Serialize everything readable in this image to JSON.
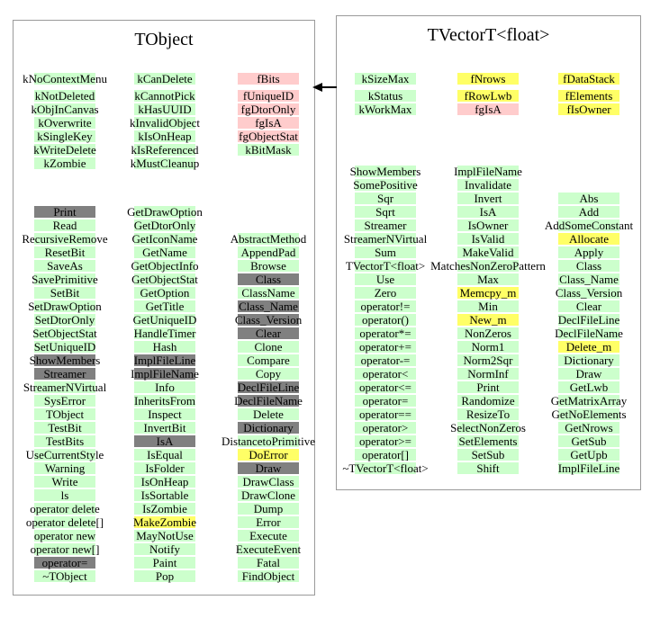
{
  "colors": {
    "green": "#ccffcc",
    "pink": "#ffcccc",
    "yellow": "#ffff66",
    "gray": "#808080"
  },
  "arrow": {
    "points_to": "TObject",
    "from": "TVectorT<float>"
  },
  "classes": [
    {
      "id": "tobject",
      "title": "TObject",
      "members": [
        [
          {
            "t": "kNoContextMenu",
            "c": "green"
          },
          {
            "t": "kNotDeleted",
            "c": "green"
          },
          {
            "t": "kObjInCanvas",
            "c": "green"
          },
          {
            "t": "kOverwrite",
            "c": "green"
          },
          {
            "t": "kSingleKey",
            "c": "green"
          },
          {
            "t": "kWriteDelete",
            "c": "green"
          },
          {
            "t": "kZombie",
            "c": "green"
          }
        ],
        [
          {
            "t": "kCanDelete",
            "c": "green"
          },
          {
            "t": "kCannotPick",
            "c": "green"
          },
          {
            "t": "kHasUUID",
            "c": "green"
          },
          {
            "t": "kInvalidObject",
            "c": "green"
          },
          {
            "t": "kIsOnHeap",
            "c": "green"
          },
          {
            "t": "kIsReferenced",
            "c": "green"
          },
          {
            "t": "kMustCleanup",
            "c": "green"
          }
        ],
        [
          {
            "t": "fBits",
            "c": "pink"
          },
          {
            "t": "fUniqueID",
            "c": "pink"
          },
          {
            "t": "fgDtorOnly",
            "c": "pink"
          },
          {
            "t": "fgIsA",
            "c": "pink"
          },
          {
            "t": "fgObjectStat",
            "c": "pink"
          },
          {
            "t": "kBitMask",
            "c": "green"
          }
        ]
      ],
      "methods": [
        [
          {
            "t": "Print",
            "c": "gray"
          },
          {
            "t": "Read",
            "c": "green"
          },
          {
            "t": "RecursiveRemove",
            "c": "green"
          },
          {
            "t": "ResetBit",
            "c": "green"
          },
          {
            "t": "SaveAs",
            "c": "green"
          },
          {
            "t": "SavePrimitive",
            "c": "green"
          },
          {
            "t": "SetBit",
            "c": "green"
          },
          {
            "t": "SetDrawOption",
            "c": "green"
          },
          {
            "t": "SetDtorOnly",
            "c": "green"
          },
          {
            "t": "SetObjectStat",
            "c": "green"
          },
          {
            "t": "SetUniqueID",
            "c": "green"
          },
          {
            "t": "ShowMembers",
            "c": "gray"
          },
          {
            "t": "Streamer",
            "c": "gray"
          },
          {
            "t": "StreamerNVirtual",
            "c": "green"
          },
          {
            "t": "SysError",
            "c": "green"
          },
          {
            "t": "TObject",
            "c": "green"
          },
          {
            "t": "TestBit",
            "c": "green"
          },
          {
            "t": "TestBits",
            "c": "green"
          },
          {
            "t": "UseCurrentStyle",
            "c": "green"
          },
          {
            "t": "Warning",
            "c": "green"
          },
          {
            "t": "Write",
            "c": "green"
          },
          {
            "t": "ls",
            "c": "green"
          },
          {
            "t": "operator delete",
            "c": "green"
          },
          {
            "t": "operator delete[]",
            "c": "green"
          },
          {
            "t": "operator new",
            "c": "green"
          },
          {
            "t": "operator new[]",
            "c": "green"
          },
          {
            "t": "operator=",
            "c": "gray"
          },
          {
            "t": "~TObject",
            "c": "green"
          }
        ],
        [
          {
            "t": "GetDrawOption",
            "c": "green"
          },
          {
            "t": "GetDtorOnly",
            "c": "green"
          },
          {
            "t": "GetIconName",
            "c": "green"
          },
          {
            "t": "GetName",
            "c": "green"
          },
          {
            "t": "GetObjectInfo",
            "c": "green"
          },
          {
            "t": "GetObjectStat",
            "c": "green"
          },
          {
            "t": "GetOption",
            "c": "green"
          },
          {
            "t": "GetTitle",
            "c": "green"
          },
          {
            "t": "GetUniqueID",
            "c": "green"
          },
          {
            "t": "HandleTimer",
            "c": "green"
          },
          {
            "t": "Hash",
            "c": "green"
          },
          {
            "t": "ImplFileLine",
            "c": "gray"
          },
          {
            "t": "ImplFileName",
            "c": "gray"
          },
          {
            "t": "Info",
            "c": "green"
          },
          {
            "t": "InheritsFrom",
            "c": "green"
          },
          {
            "t": "Inspect",
            "c": "green"
          },
          {
            "t": "InvertBit",
            "c": "green"
          },
          {
            "t": "IsA",
            "c": "gray"
          },
          {
            "t": "IsEqual",
            "c": "green"
          },
          {
            "t": "IsFolder",
            "c": "green"
          },
          {
            "t": "IsOnHeap",
            "c": "green"
          },
          {
            "t": "IsSortable",
            "c": "green"
          },
          {
            "t": "IsZombie",
            "c": "green"
          },
          {
            "t": "MakeZombie",
            "c": "yellow"
          },
          {
            "t": "MayNotUse",
            "c": "green"
          },
          {
            "t": "Notify",
            "c": "green"
          },
          {
            "t": "Paint",
            "c": "green"
          },
          {
            "t": "Pop",
            "c": "green"
          }
        ],
        [
          {
            "t": "AbstractMethod",
            "c": "green"
          },
          {
            "t": "AppendPad",
            "c": "green"
          },
          {
            "t": "Browse",
            "c": "green"
          },
          {
            "t": "Class",
            "c": "gray"
          },
          {
            "t": "ClassName",
            "c": "green"
          },
          {
            "t": "Class_Name",
            "c": "gray"
          },
          {
            "t": "Class_Version",
            "c": "gray"
          },
          {
            "t": "Clear",
            "c": "gray"
          },
          {
            "t": "Clone",
            "c": "green"
          },
          {
            "t": "Compare",
            "c": "green"
          },
          {
            "t": "Copy",
            "c": "green"
          },
          {
            "t": "DeclFileLine",
            "c": "gray"
          },
          {
            "t": "DeclFileName",
            "c": "gray"
          },
          {
            "t": "Delete",
            "c": "green"
          },
          {
            "t": "Dictionary",
            "c": "gray"
          },
          {
            "t": "DistancetoPrimitive",
            "c": "green"
          },
          {
            "t": "DoError",
            "c": "yellow"
          },
          {
            "t": "Draw",
            "c": "gray"
          },
          {
            "t": "DrawClass",
            "c": "green"
          },
          {
            "t": "DrawClone",
            "c": "green"
          },
          {
            "t": "Dump",
            "c": "green"
          },
          {
            "t": "Error",
            "c": "green"
          },
          {
            "t": "Execute",
            "c": "green"
          },
          {
            "t": "ExecuteEvent",
            "c": "green"
          },
          {
            "t": "Fatal",
            "c": "green"
          },
          {
            "t": "FindObject",
            "c": "green"
          }
        ]
      ]
    },
    {
      "id": "tvectort-float",
      "title": "TVectorT<float>",
      "members": [
        [
          {
            "t": "kSizeMax",
            "c": "green"
          },
          {
            "t": "kStatus",
            "c": "green"
          },
          {
            "t": "kWorkMax",
            "c": "green"
          }
        ],
        [
          {
            "t": "fNrows",
            "c": "yellow"
          },
          {
            "t": "fRowLwb",
            "c": "yellow"
          },
          {
            "t": "fgIsA",
            "c": "pink"
          }
        ],
        [
          {
            "t": "fDataStack",
            "c": "yellow"
          },
          {
            "t": "fElements",
            "c": "yellow"
          },
          {
            "t": "fIsOwner",
            "c": "yellow"
          }
        ]
      ],
      "methods": [
        [
          {
            "t": "ShowMembers",
            "c": "green"
          },
          {
            "t": "SomePositive",
            "c": "green"
          },
          {
            "t": "Sqr",
            "c": "green"
          },
          {
            "t": "Sqrt",
            "c": "green"
          },
          {
            "t": "Streamer",
            "c": "green"
          },
          {
            "t": "StreamerNVirtual",
            "c": "green"
          },
          {
            "t": "Sum",
            "c": "green"
          },
          {
            "t": "TVectorT<float>",
            "c": "green"
          },
          {
            "t": "Use",
            "c": "green"
          },
          {
            "t": "Zero",
            "c": "green"
          },
          {
            "t": "operator!=",
            "c": "green"
          },
          {
            "t": "operator()",
            "c": "green"
          },
          {
            "t": "operator*=",
            "c": "green"
          },
          {
            "t": "operator+=",
            "c": "green"
          },
          {
            "t": "operator-=",
            "c": "green"
          },
          {
            "t": "operator<",
            "c": "green"
          },
          {
            "t": "operator<=",
            "c": "green"
          },
          {
            "t": "operator=",
            "c": "green"
          },
          {
            "t": "operator==",
            "c": "green"
          },
          {
            "t": "operator>",
            "c": "green"
          },
          {
            "t": "operator>=",
            "c": "green"
          },
          {
            "t": "operator[]",
            "c": "green"
          },
          {
            "t": "~TVectorT<float>",
            "c": "green"
          }
        ],
        [
          {
            "t": "ImplFileName",
            "c": "green"
          },
          {
            "t": "Invalidate",
            "c": "green"
          },
          {
            "t": "Invert",
            "c": "green"
          },
          {
            "t": "IsA",
            "c": "green"
          },
          {
            "t": "IsOwner",
            "c": "green"
          },
          {
            "t": "IsValid",
            "c": "green"
          },
          {
            "t": "MakeValid",
            "c": "green"
          },
          {
            "t": "MatchesNonZeroPattern",
            "c": "green"
          },
          {
            "t": "Max",
            "c": "green"
          },
          {
            "t": "Memcpy_m",
            "c": "yellow"
          },
          {
            "t": "Min",
            "c": "green"
          },
          {
            "t": "New_m",
            "c": "yellow"
          },
          {
            "t": "NonZeros",
            "c": "green"
          },
          {
            "t": "Norm1",
            "c": "green"
          },
          {
            "t": "Norm2Sqr",
            "c": "green"
          },
          {
            "t": "NormInf",
            "c": "green"
          },
          {
            "t": "Print",
            "c": "green"
          },
          {
            "t": "Randomize",
            "c": "green"
          },
          {
            "t": "ResizeTo",
            "c": "green"
          },
          {
            "t": "SelectNonZeros",
            "c": "green"
          },
          {
            "t": "SetElements",
            "c": "green"
          },
          {
            "t": "SetSub",
            "c": "green"
          },
          {
            "t": "Shift",
            "c": "green"
          }
        ],
        [
          {
            "t": "Abs",
            "c": "green"
          },
          {
            "t": "Add",
            "c": "green"
          },
          {
            "t": "AddSomeConstant",
            "c": "green"
          },
          {
            "t": "Allocate",
            "c": "yellow"
          },
          {
            "t": "Apply",
            "c": "green"
          },
          {
            "t": "Class",
            "c": "green"
          },
          {
            "t": "Class_Name",
            "c": "green"
          },
          {
            "t": "Class_Version",
            "c": "green"
          },
          {
            "t": "Clear",
            "c": "green"
          },
          {
            "t": "DeclFileLine",
            "c": "green"
          },
          {
            "t": "DeclFileName",
            "c": "green"
          },
          {
            "t": "Delete_m",
            "c": "yellow"
          },
          {
            "t": "Dictionary",
            "c": "green"
          },
          {
            "t": "Draw",
            "c": "green"
          },
          {
            "t": "GetLwb",
            "c": "green"
          },
          {
            "t": "GetMatrixArray",
            "c": "green"
          },
          {
            "t": "GetNoElements",
            "c": "green"
          },
          {
            "t": "GetNrows",
            "c": "green"
          },
          {
            "t": "GetSub",
            "c": "green"
          },
          {
            "t": "GetUpb",
            "c": "green"
          },
          {
            "t": "ImplFileLine",
            "c": "green"
          }
        ]
      ]
    }
  ]
}
